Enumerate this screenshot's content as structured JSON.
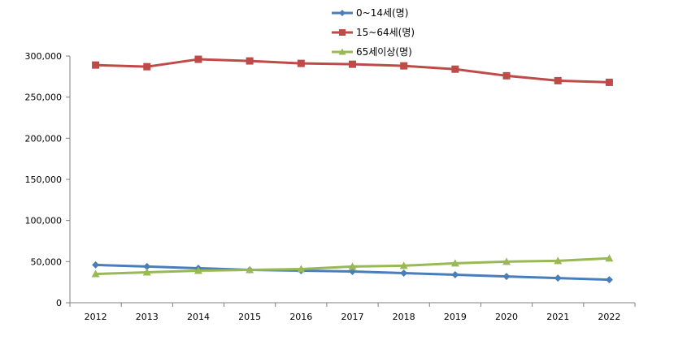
{
  "chart_data": {
    "type": "line",
    "categories": [
      "2012",
      "2013",
      "2014",
      "2015",
      "2016",
      "2017",
      "2018",
      "2019",
      "2020",
      "2021",
      "2022"
    ],
    "ylim": [
      0,
      300000
    ],
    "yticks": [
      0,
      50000,
      100000,
      150000,
      200000,
      250000,
      300000
    ],
    "ytick_labels": [
      "0",
      "50,000",
      "100,000",
      "150,000",
      "200,000",
      "250,000",
      "300,000"
    ],
    "grid": false,
    "legend_position": "top-center",
    "series": [
      {
        "name": "0~14세(명)",
        "color": "#4a7ebb",
        "marker": "diamond",
        "values": [
          46000,
          44000,
          42000,
          40000,
          39000,
          38000,
          36000,
          34000,
          32000,
          30000,
          28000
        ]
      },
      {
        "name": "15~64세(명)",
        "color": "#be4b48",
        "marker": "square",
        "values": [
          289000,
          287000,
          296000,
          294000,
          291000,
          290000,
          288000,
          284000,
          276000,
          270000,
          268000
        ]
      },
      {
        "name": "65세이상(명)",
        "color": "#98b954",
        "marker": "triangle",
        "values": [
          35000,
          37000,
          39000,
          40000,
          41000,
          44000,
          45000,
          48000,
          50000,
          51000,
          54000
        ]
      }
    ]
  }
}
